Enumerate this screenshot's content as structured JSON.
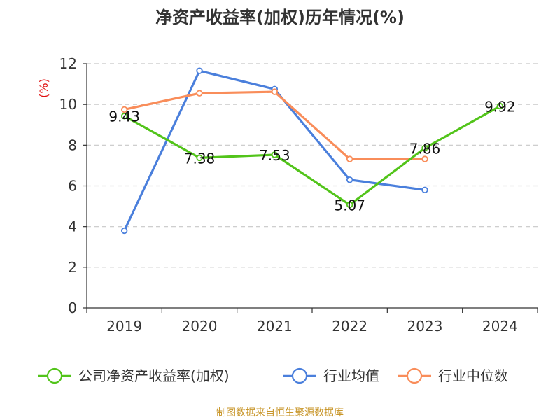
{
  "chart_data": {
    "type": "line",
    "title": "净资产收益率(加权)历年情况(%)",
    "ylabel": "(%)",
    "xlabel": "",
    "categories": [
      "2019",
      "2020",
      "2021",
      "2022",
      "2023",
      "2024"
    ],
    "ylim": [
      0,
      12
    ],
    "yticks": [
      0,
      2,
      4,
      6,
      8,
      10,
      12
    ],
    "grid": true,
    "legend_position": "bottom",
    "series": [
      {
        "name": "公司净资产收益率(加权)",
        "color": "#52c41a",
        "values": [
          9.43,
          7.38,
          7.53,
          5.07,
          7.86,
          9.92
        ],
        "data_labels": [
          "9.43",
          "7.38",
          "7.53",
          "5.07",
          "7.86",
          "9.92"
        ]
      },
      {
        "name": "行业均值",
        "color": "#4a7fdc",
        "values": [
          3.8,
          11.65,
          10.75,
          6.3,
          5.8,
          null
        ]
      },
      {
        "name": "行业中位数",
        "color": "#f98d5a",
        "values": [
          9.75,
          10.55,
          10.62,
          7.32,
          7.32,
          null
        ]
      }
    ]
  },
  "source_text": "制图数据来自恒生聚源数据库"
}
